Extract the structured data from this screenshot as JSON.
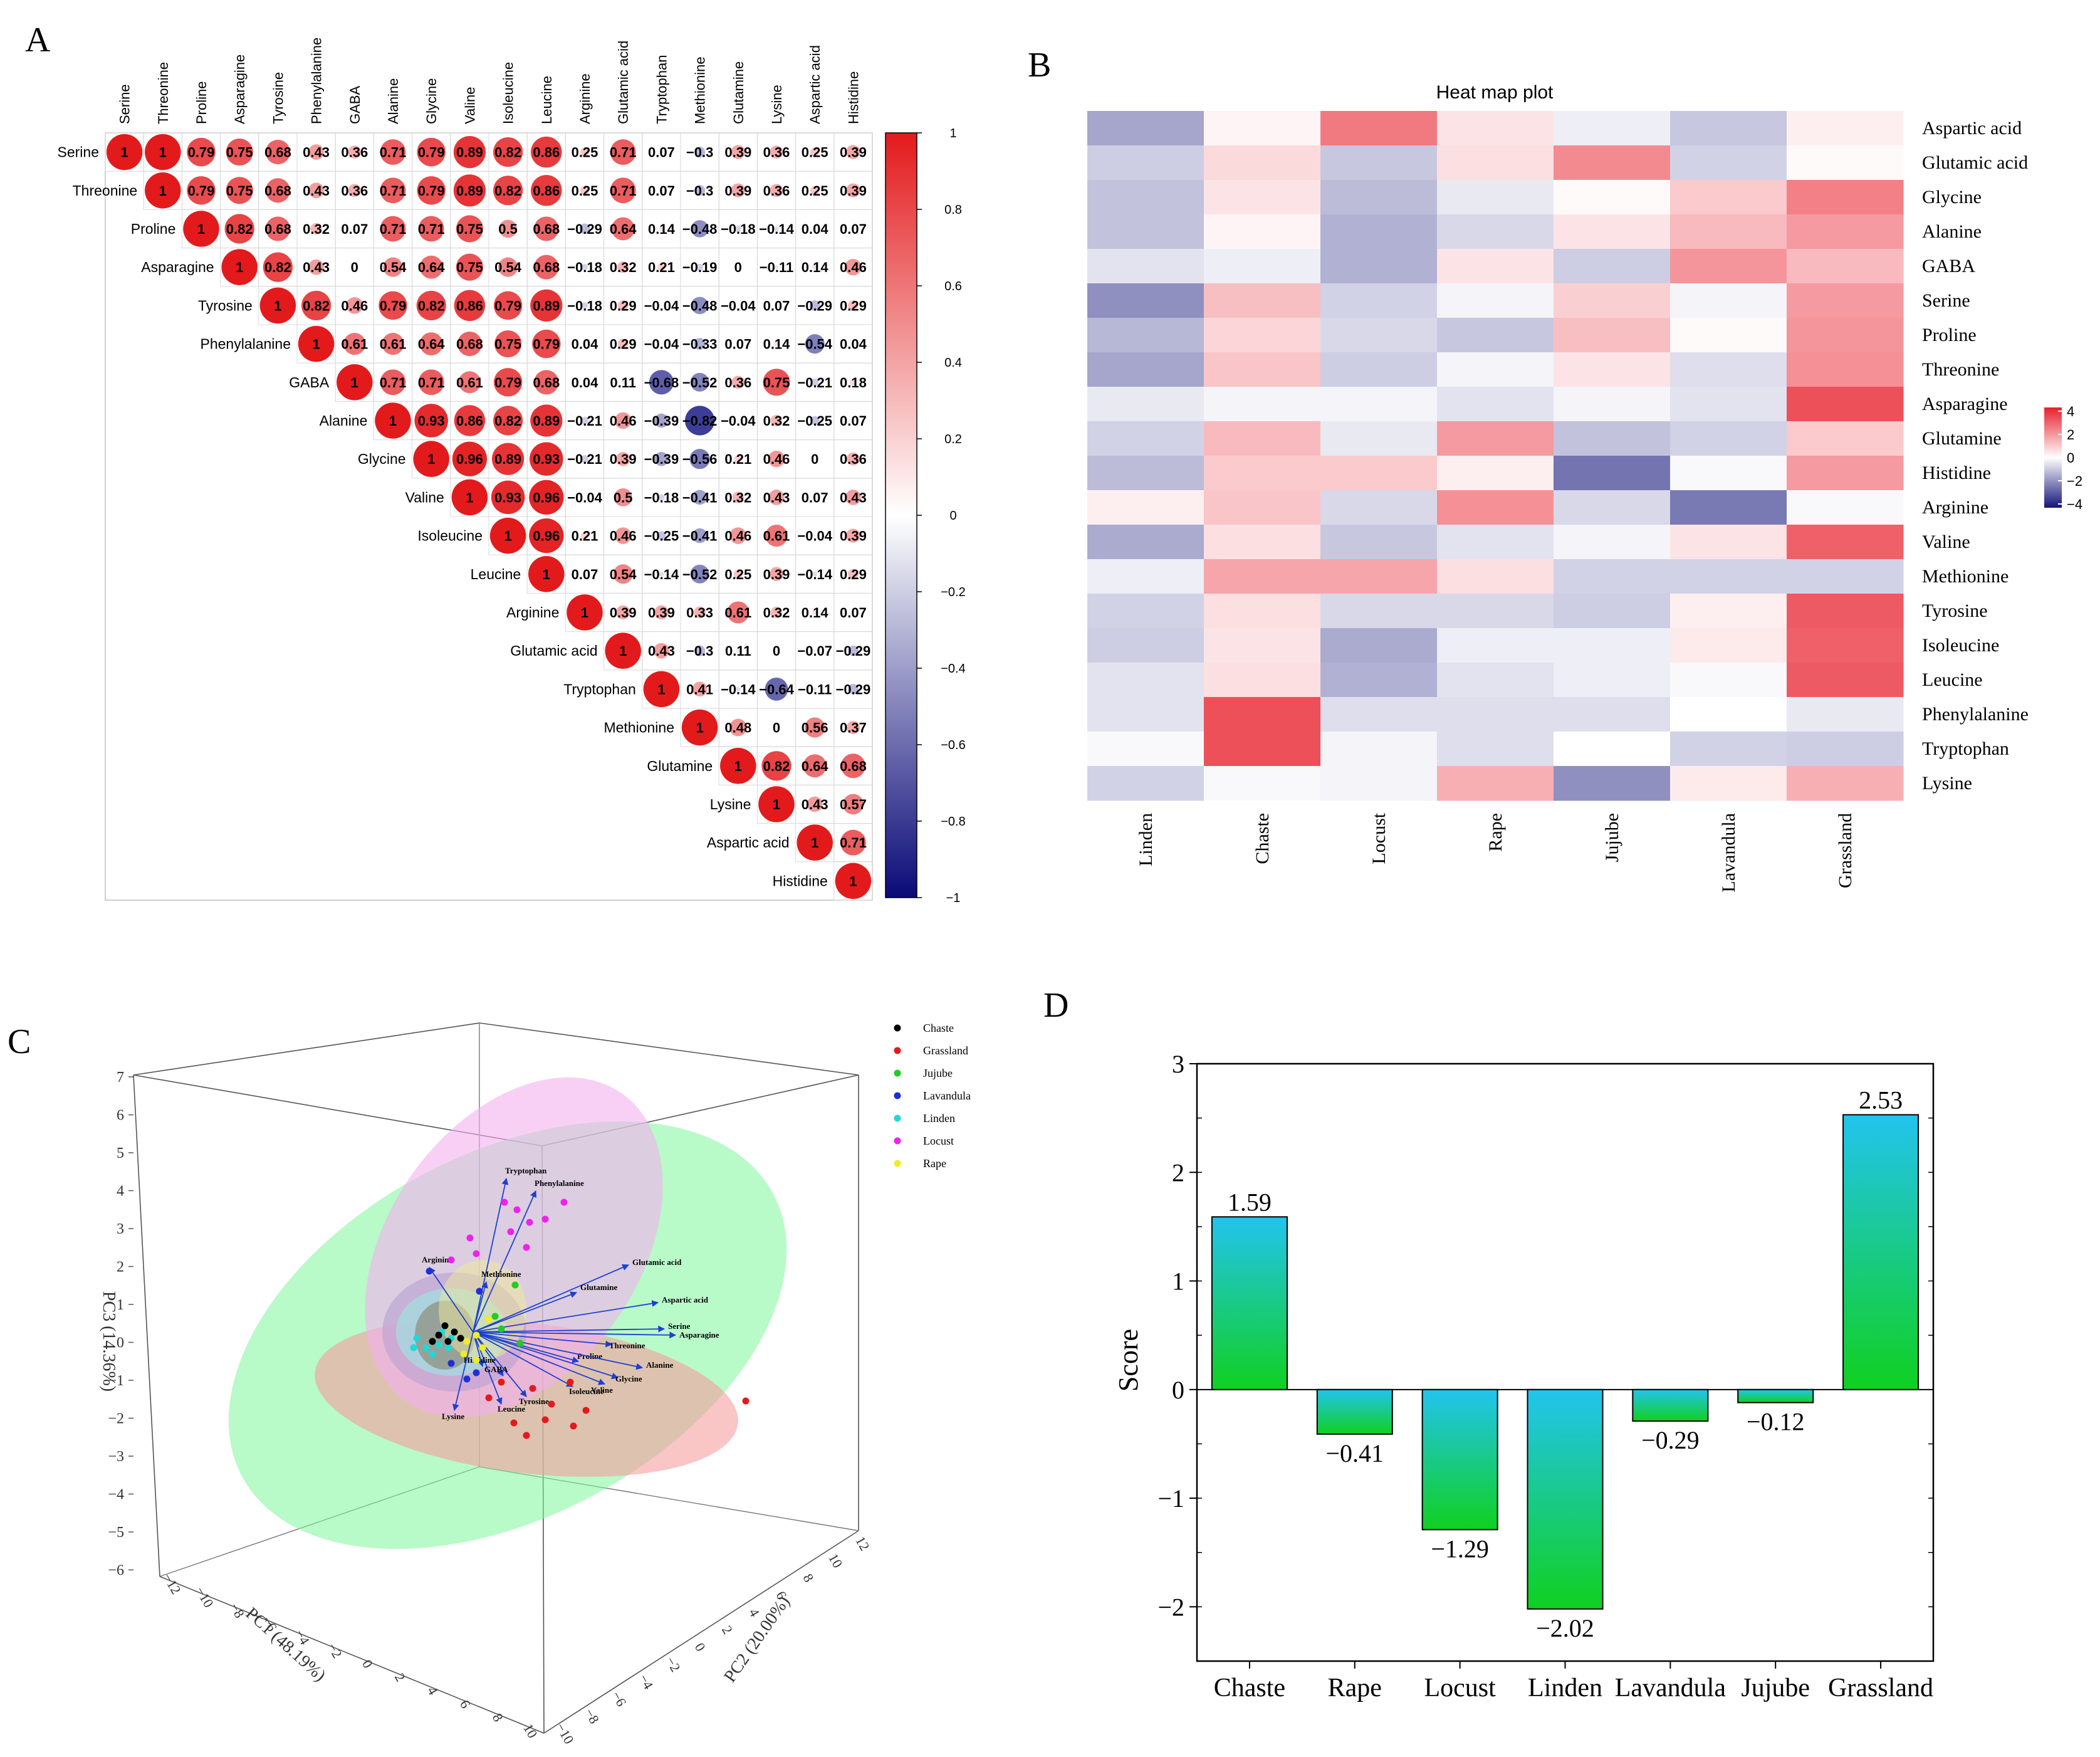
{
  "panel_letters": {
    "a": "A",
    "b": "B",
    "c": "C",
    "d": "D"
  },
  "colors": {
    "pos": "#e31a1c",
    "neg": "#1a1a8c",
    "bar_top": "#22c4ee",
    "bar_bottom": "#10d020",
    "arrow": "#1f3fd0"
  },
  "chart_data": [
    {
      "type": "heatmap",
      "name": "correlation",
      "panel": "A",
      "labels": [
        "Serine",
        "Threonine",
        "Proline",
        "Asparagine",
        "Tyrosine",
        "Phenylalanine",
        "GABA",
        "Alanine",
        "Glycine",
        "Valine",
        "Isoleucine",
        "Leucine",
        "Arginine",
        "Glutamic acid",
        "Tryptophan",
        "Methionine",
        "Glutamine",
        "Lysine",
        "Aspartic acid",
        "Histidine"
      ],
      "matrix": [
        [
          1,
          1,
          0.79,
          0.75,
          0.68,
          0.43,
          0.36,
          0.71,
          0.79,
          0.89,
          0.82,
          0.86,
          0.25,
          0.71,
          0.07,
          -0.3,
          0.39,
          0.36,
          0.25,
          0.39
        ],
        [
          null,
          1,
          0.79,
          0.75,
          0.68,
          0.43,
          0.36,
          0.71,
          0.79,
          0.89,
          0.82,
          0.86,
          0.25,
          0.71,
          0.07,
          -0.3,
          0.39,
          0.36,
          0.25,
          0.39
        ],
        [
          null,
          null,
          1,
          0.82,
          0.68,
          0.32,
          0.07,
          0.71,
          0.71,
          0.75,
          0.5,
          0.68,
          -0.29,
          0.64,
          0.14,
          -0.48,
          -0.18,
          -0.14,
          0.04,
          0.07
        ],
        [
          null,
          null,
          null,
          1,
          0.82,
          0.43,
          0,
          0.54,
          0.64,
          0.75,
          0.54,
          0.68,
          -0.18,
          0.32,
          0.21,
          -0.19,
          0,
          -0.11,
          0.14,
          0.46
        ],
        [
          null,
          null,
          null,
          null,
          1,
          0.82,
          0.46,
          0.79,
          0.82,
          0.86,
          0.79,
          0.89,
          -0.18,
          0.29,
          -0.04,
          -0.48,
          -0.04,
          0.07,
          -0.29,
          0.29
        ],
        [
          null,
          null,
          null,
          null,
          null,
          1,
          0.61,
          0.61,
          0.64,
          0.68,
          0.75,
          0.79,
          0.04,
          0.29,
          -0.04,
          -0.33,
          0.07,
          0.14,
          -0.54,
          0.04
        ],
        [
          null,
          null,
          null,
          null,
          null,
          null,
          1,
          0.71,
          0.71,
          0.61,
          0.79,
          0.68,
          0.04,
          0.11,
          -0.68,
          -0.52,
          0.36,
          0.75,
          -0.21,
          0.18
        ],
        [
          null,
          null,
          null,
          null,
          null,
          null,
          null,
          1,
          0.93,
          0.86,
          0.82,
          0.89,
          -0.21,
          0.46,
          -0.39,
          -0.82,
          -0.04,
          0.32,
          -0.25,
          0.07
        ],
        [
          null,
          null,
          null,
          null,
          null,
          null,
          null,
          null,
          1,
          0.96,
          0.89,
          0.93,
          -0.21,
          0.39,
          -0.39,
          -0.56,
          0.21,
          0.46,
          0,
          0.36
        ],
        [
          null,
          null,
          null,
          null,
          null,
          null,
          null,
          null,
          null,
          1,
          0.93,
          0.96,
          -0.04,
          0.5,
          -0.18,
          -0.41,
          0.32,
          0.43,
          0.07,
          0.43
        ],
        [
          null,
          null,
          null,
          null,
          null,
          null,
          null,
          null,
          null,
          null,
          1,
          0.96,
          0.21,
          0.46,
          -0.25,
          -0.41,
          0.46,
          0.61,
          -0.04,
          0.39
        ],
        [
          null,
          null,
          null,
          null,
          null,
          null,
          null,
          null,
          null,
          null,
          null,
          1,
          0.07,
          0.54,
          -0.14,
          -0.52,
          0.25,
          0.39,
          -0.14,
          0.29
        ],
        [
          null,
          null,
          null,
          null,
          null,
          null,
          null,
          null,
          null,
          null,
          null,
          null,
          1,
          0.39,
          0.39,
          0.33,
          0.61,
          0.32,
          0.14,
          0.07
        ],
        [
          null,
          null,
          null,
          null,
          null,
          null,
          null,
          null,
          null,
          null,
          null,
          null,
          null,
          1,
          0.43,
          -0.3,
          0.11,
          0,
          -0.07,
          -0.29
        ],
        [
          null,
          null,
          null,
          null,
          null,
          null,
          null,
          null,
          null,
          null,
          null,
          null,
          null,
          null,
          1,
          0.41,
          -0.14,
          -0.64,
          -0.11,
          -0.29
        ],
        [
          null,
          null,
          null,
          null,
          null,
          null,
          null,
          null,
          null,
          null,
          null,
          null,
          null,
          null,
          null,
          1,
          0.48,
          0,
          0.56,
          0.37
        ],
        [
          null,
          null,
          null,
          null,
          null,
          null,
          null,
          null,
          null,
          null,
          null,
          null,
          null,
          null,
          null,
          null,
          1,
          0.82,
          0.64,
          0.68
        ],
        [
          null,
          null,
          null,
          null,
          null,
          null,
          null,
          null,
          null,
          null,
          null,
          null,
          null,
          null,
          null,
          null,
          null,
          1,
          0.43,
          0.57
        ],
        [
          null,
          null,
          null,
          null,
          null,
          null,
          null,
          null,
          null,
          null,
          null,
          null,
          null,
          null,
          null,
          null,
          null,
          null,
          1,
          0.71
        ],
        [
          null,
          null,
          null,
          null,
          null,
          null,
          null,
          null,
          null,
          null,
          null,
          null,
          null,
          null,
          null,
          null,
          null,
          null,
          null,
          1
        ]
      ],
      "colorbar_ticks": [
        "1",
        "0.8",
        "0.6",
        "0.4",
        "0.2",
        "0",
        "−0.2",
        "−0.4",
        "−0.6",
        "−0.8",
        "−1"
      ],
      "range": [
        -1,
        1
      ]
    },
    {
      "type": "heatmap",
      "name": "heat map plot",
      "panel": "B",
      "title": "Heat map plot",
      "columns": [
        "Linden",
        "Chaste",
        "Locust",
        "Rape",
        "Jujube",
        "Lavandula",
        "Grassland"
      ],
      "rows": [
        "Aspartic acid",
        "Glutamic acid",
        "Glycine",
        "Alanine",
        "GABA",
        "Serine",
        "Proline",
        "Threonine",
        "Asparagine",
        "Glutamine",
        "Histidine",
        "Arginine",
        "Valine",
        "Methionine",
        "Tyrosine",
        "Isoleucine",
        "Leucine",
        "Phenylalanine",
        "Tryptophan",
        "Lysine"
      ],
      "values": [
        [
          -1.6,
          0.2,
          2.5,
          0.5,
          -0.3,
          -1.0,
          0.3
        ],
        [
          -0.9,
          0.7,
          -1.0,
          0.6,
          2.2,
          -0.8,
          0.1
        ],
        [
          -1.1,
          0.5,
          -1.2,
          -0.4,
          0.1,
          1.0,
          2.4
        ],
        [
          -1.1,
          0.2,
          -1.4,
          -0.7,
          0.5,
          1.3,
          1.9
        ],
        [
          -0.5,
          -0.3,
          -1.4,
          0.5,
          -0.9,
          2.0,
          1.3
        ],
        [
          -2.0,
          1.2,
          -0.8,
          -0.2,
          0.9,
          -0.2,
          1.9
        ],
        [
          -1.3,
          0.8,
          -0.7,
          -1.0,
          1.2,
          0.1,
          2.0
        ],
        [
          -1.6,
          1.1,
          -0.9,
          -0.2,
          0.5,
          -0.6,
          2.1
        ],
        [
          -0.4,
          -0.2,
          -0.2,
          -0.5,
          -0.2,
          -0.5,
          3.3
        ],
        [
          -0.8,
          1.3,
          -0.4,
          1.9,
          -1.1,
          -0.8,
          1.0
        ],
        [
          -1.2,
          1.0,
          1.0,
          0.3,
          -2.5,
          -0.1,
          1.9
        ],
        [
          0.3,
          1.1,
          -0.7,
          2.1,
          -0.7,
          -2.4,
          -0.1
        ],
        [
          -1.5,
          0.6,
          -1.0,
          -0.5,
          -0.2,
          0.5,
          3.0
        ],
        [
          -0.3,
          1.7,
          1.7,
          0.6,
          -0.8,
          -0.8,
          -0.8
        ],
        [
          -0.8,
          0.6,
          -0.7,
          -0.7,
          -0.9,
          0.3,
          3.1
        ],
        [
          -0.9,
          0.5,
          -1.5,
          -0.3,
          -0.3,
          0.4,
          3.0
        ],
        [
          -0.5,
          0.6,
          -1.4,
          -0.5,
          -0.3,
          -0.1,
          3.1
        ],
        [
          -0.5,
          3.3,
          -0.6,
          -0.6,
          -0.6,
          0.0,
          -0.4
        ],
        [
          -0.1,
          3.3,
          -0.2,
          -0.6,
          0.0,
          -0.8,
          -0.9
        ],
        [
          -0.8,
          -0.1,
          -0.2,
          1.5,
          -2.0,
          0.4,
          1.5
        ]
      ],
      "legend_ticks": [
        "4",
        "2",
        "0",
        "−2",
        "−4"
      ],
      "range": [
        -4,
        4
      ]
    },
    {
      "type": "scatter",
      "name": "PCA biplot 3D",
      "panel": "C",
      "x_axis_label": "PC1 (48.19%)",
      "y_axis_label": "PC2 (20.00%)",
      "z_axis_label": "PC3 (14.36%)",
      "z_ticks": [
        "7",
        "6",
        "5",
        "4",
        "3",
        "2",
        "1",
        "0",
        "−1",
        "−2",
        "−3",
        "−4",
        "−5",
        "−6"
      ],
      "x_ticks": [
        "−12",
        "−10",
        "−8",
        "−6",
        "−4",
        "−2",
        "0",
        "2",
        "4",
        "6",
        "8",
        "10"
      ],
      "y_ticks": [
        "−10",
        "−8",
        "−6",
        "−4",
        "−2",
        "0",
        "2",
        "4",
        "6",
        "8",
        "10",
        "12"
      ],
      "legend": [
        {
          "name": "Chaste",
          "color": "#000000"
        },
        {
          "name": "Grassland",
          "color": "#e31a1c"
        },
        {
          "name": "Jujube",
          "color": "#22cc22"
        },
        {
          "name": "Lavandula",
          "color": "#1f2fd8"
        },
        {
          "name": "Linden",
          "color": "#20d8d8"
        },
        {
          "name": "Locust",
          "color": "#ee22ee"
        },
        {
          "name": "Rape",
          "color": "#eeee22"
        }
      ],
      "loadings": [
        "Tryptophan",
        "Phenylalanine",
        "Arginine",
        "Methionine",
        "Glutamic acid",
        "Glutamine",
        "Aspartic acid",
        "Serine",
        "Asparagine",
        "Threonine",
        "Proline",
        "Alanine",
        "Glycine",
        "Valine",
        "Isoleucine",
        "Tyrosine",
        "Leucine",
        "GABA",
        "Histidine",
        "Lysine"
      ]
    },
    {
      "type": "bar",
      "name": "score",
      "panel": "D",
      "categories": [
        "Chaste",
        "Rape",
        "Locust",
        "Linden",
        "Lavandula",
        "Jujube",
        "Grassland"
      ],
      "values": [
        1.59,
        -0.41,
        -1.29,
        -2.02,
        -0.29,
        -0.12,
        2.53
      ],
      "value_labels": [
        "1.59",
        "−0.41",
        "−1.29",
        "−2.02",
        "−0.29",
        "−0.12",
        "2.53"
      ],
      "ylabel": "Score",
      "ylim": [
        -2.5,
        3
      ],
      "yticks": [
        {
          "v": 3,
          "t": "3"
        },
        {
          "v": 2,
          "t": "2"
        },
        {
          "v": 1,
          "t": "1"
        },
        {
          "v": 0,
          "t": "0"
        },
        {
          "v": -1,
          "t": "−1"
        },
        {
          "v": -2,
          "t": "−2"
        }
      ]
    }
  ]
}
